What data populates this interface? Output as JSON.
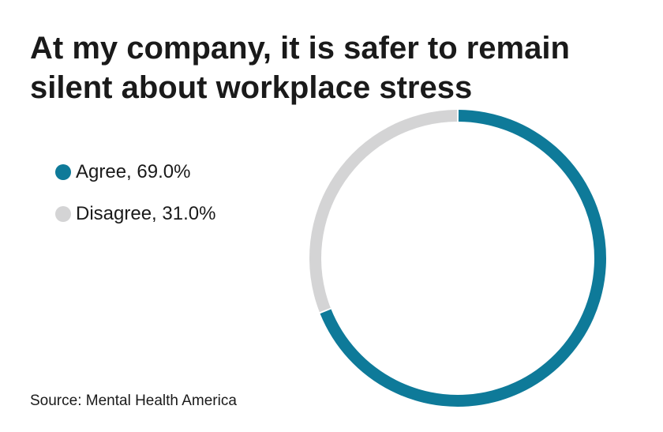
{
  "chart_data": {
    "type": "pie",
    "variant": "donut",
    "title": "At my company, it is safer to remain silent about workplace stress",
    "slices": [
      {
        "label": "Agree",
        "value": 69.0,
        "display": "Agree, 69.0%",
        "color": "#0e7a99"
      },
      {
        "label": "Disagree",
        "value": 31.0,
        "display": "Disagree, 31.0%",
        "color": "#d4d4d5"
      }
    ],
    "start_angle": "12 o'clock",
    "direction": "clockwise",
    "legend_position": "left"
  },
  "source": "Source: Mental Health America"
}
